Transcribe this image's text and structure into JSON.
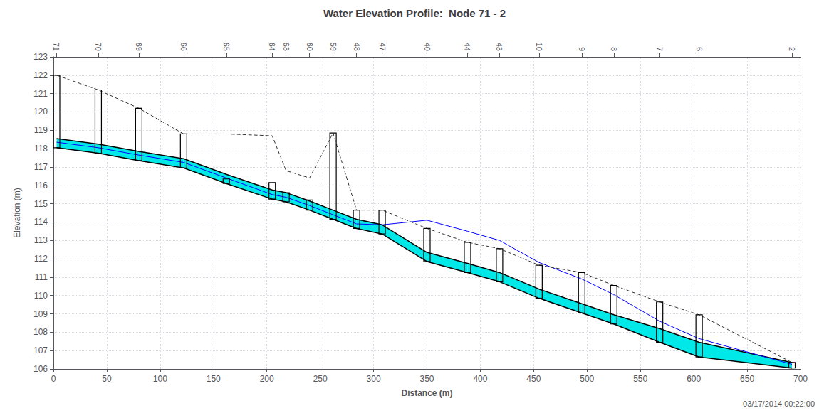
{
  "chart_data": {
    "type": "line",
    "title": "Water Elevation Profile:  Node 71 - 2",
    "xlabel": "Distance (m)",
    "ylabel": "Elevation (m)",
    "annotation": "03/17/2014 00:22:00",
    "xlim": [
      0,
      700
    ],
    "ylim": [
      106,
      123
    ],
    "xticks": [
      0,
      50,
      100,
      150,
      200,
      250,
      300,
      350,
      400,
      450,
      500,
      550,
      600,
      650,
      700
    ],
    "yticks": [
      106,
      107,
      108,
      109,
      110,
      111,
      112,
      113,
      114,
      115,
      116,
      117,
      118,
      119,
      120,
      121,
      122,
      123
    ],
    "grid": true,
    "legend": false,
    "x": [
      3,
      42,
      80,
      122,
      162,
      205,
      218,
      240,
      262,
      284,
      308,
      350,
      388,
      418,
      455,
      495,
      525,
      568,
      605,
      692
    ],
    "node_labels": [
      "71",
      "70",
      "69",
      "66",
      "65",
      "64",
      "63",
      "60",
      "59",
      "48",
      "47",
      "40",
      "44",
      "43",
      "10",
      "9",
      "8",
      "7",
      "6",
      "2"
    ],
    "series": [
      {
        "type": "area",
        "color": "#00e8e8",
        "values": [
          118.55,
          118.25,
          117.85,
          117.45,
          116.6,
          115.75,
          115.6,
          115.15,
          114.65,
          114.15,
          113.85,
          112.35,
          111.75,
          111.25,
          110.35,
          109.55,
          108.95,
          108.2,
          107.45,
          106.35
        ],
        "lower": [
          118.05,
          117.75,
          117.35,
          116.95,
          116.1,
          115.25,
          115.1,
          114.65,
          114.15,
          113.65,
          113.35,
          111.85,
          111.25,
          110.75,
          109.85,
          109.05,
          108.45,
          107.45,
          106.65,
          106.05
        ]
      },
      {
        "type": "line",
        "color": "#000000",
        "line_style": "solid",
        "values": [
          118.55,
          118.25,
          117.85,
          117.45,
          116.6,
          115.75,
          115.6,
          115.15,
          114.65,
          114.15,
          113.85,
          112.35,
          111.75,
          111.25,
          110.35,
          109.55,
          108.95,
          108.2,
          107.45,
          106.35
        ]
      },
      {
        "type": "line",
        "color": "#000000",
        "line_style": "solid",
        "values": [
          118.05,
          117.75,
          117.35,
          116.95,
          116.1,
          115.25,
          115.1,
          114.65,
          114.15,
          113.65,
          113.35,
          111.85,
          111.25,
          110.75,
          109.85,
          109.05,
          108.45,
          107.45,
          106.65,
          106.05
        ]
      },
      {
        "type": "manhole",
        "color": "#000000",
        "width": 3,
        "values": [
          122.0,
          121.2,
          120.2,
          118.8,
          116.35,
          116.15,
          115.6,
          115.2,
          118.85,
          114.65,
          114.65,
          113.65,
          112.9,
          112.55,
          111.65,
          111.25,
          110.55,
          109.65,
          108.95,
          106.35
        ],
        "bottom": [
          118.05,
          117.75,
          117.35,
          116.95,
          116.1,
          115.25,
          115.1,
          114.65,
          114.15,
          113.65,
          113.35,
          111.85,
          111.25,
          110.75,
          109.85,
          109.05,
          108.45,
          107.45,
          106.65,
          106.05
        ]
      },
      {
        "type": "line",
        "color": "#0000ff",
        "line_style": "solid",
        "values": [
          118.35,
          118.05,
          117.65,
          117.25,
          116.4,
          115.5,
          115.35,
          114.9,
          114.4,
          113.9,
          113.85,
          114.1,
          113.5,
          113.0,
          111.8,
          110.9,
          110.05,
          108.6,
          107.65,
          106.25
        ]
      },
      {
        "type": "line",
        "color": "#333333",
        "line_style": "dashed",
        "values": [
          122.0,
          121.2,
          120.2,
          118.8,
          118.8,
          118.7,
          116.8,
          116.4,
          118.85,
          114.65,
          114.65,
          113.65,
          112.9,
          112.55,
          111.65,
          111.25,
          110.55,
          109.65,
          108.95,
          106.35
        ]
      }
    ]
  }
}
